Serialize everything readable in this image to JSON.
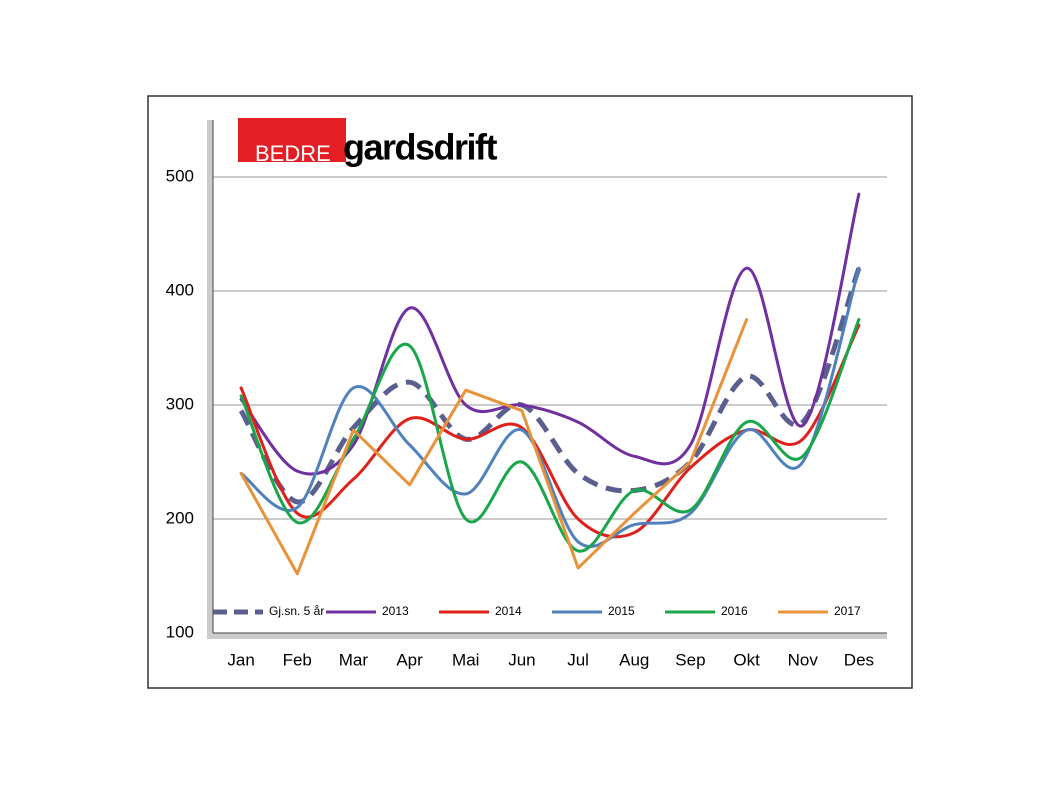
{
  "chart_data": {
    "type": "line",
    "logo": {
      "left": "BEDRE",
      "right": "gardsdrift"
    },
    "categories": [
      "Jan",
      "Feb",
      "Mar",
      "Apr",
      "Mai",
      "Jun",
      "Jul",
      "Aug",
      "Sep",
      "Okt",
      "Nov",
      "Des"
    ],
    "ylim": [
      100,
      550
    ],
    "yticks": [
      100,
      200,
      300,
      400,
      500
    ],
    "grid": true,
    "legend": "bottom",
    "series": [
      {
        "name": "Gj.sn. 5 år",
        "color": "#5b5f8e",
        "dash": true,
        "smooth": true,
        "values": [
          295,
          215,
          280,
          320,
          270,
          300,
          240,
          225,
          250,
          325,
          285,
          420
        ]
      },
      {
        "name": "2013",
        "color": "#7030a0",
        "smooth": true,
        "values": [
          305,
          242,
          265,
          385,
          300,
          300,
          285,
          255,
          265,
          420,
          282,
          485
        ]
      },
      {
        "name": "2014",
        "color": "#e0201b",
        "smooth": true,
        "values": [
          315,
          205,
          235,
          288,
          270,
          280,
          200,
          188,
          245,
          278,
          270,
          370
        ]
      },
      {
        "name": "2015",
        "color": "#4f81bd",
        "smooth": true,
        "values": [
          240,
          210,
          315,
          265,
          222,
          278,
          180,
          195,
          205,
          278,
          250,
          420
        ]
      },
      {
        "name": "2016",
        "color": "#1aa64a",
        "smooth": true,
        "values": [
          308,
          197,
          270,
          352,
          200,
          250,
          172,
          225,
          208,
          285,
          255,
          375
        ]
      },
      {
        "name": "2017",
        "color": "#e8923a",
        "smooth": false,
        "values": [
          240,
          152,
          278,
          230,
          313,
          295,
          157,
          205,
          250,
          375,
          null,
          null
        ]
      }
    ]
  }
}
